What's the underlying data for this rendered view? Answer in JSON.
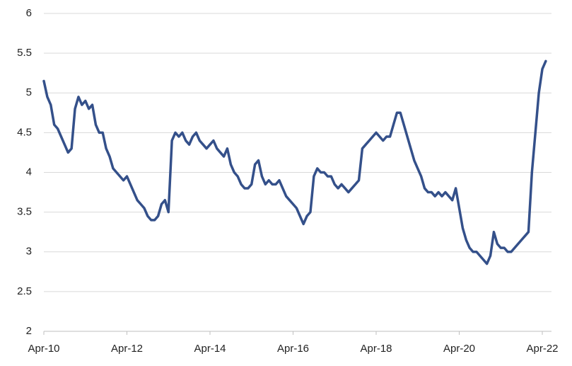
{
  "chart_data": {
    "type": "line",
    "categories": [
      "Apr-10",
      null,
      null,
      null,
      null,
      null,
      null,
      null,
      null,
      null,
      null,
      null,
      null,
      null,
      null,
      null,
      null,
      null,
      null,
      null,
      null,
      null,
      null,
      null,
      "Apr-12",
      null,
      null,
      null,
      null,
      null,
      null,
      null,
      null,
      null,
      null,
      null,
      null,
      null,
      null,
      null,
      null,
      null,
      null,
      null,
      null,
      null,
      null,
      null,
      "Apr-14",
      null,
      null,
      null,
      null,
      null,
      null,
      null,
      null,
      null,
      null,
      null,
      null,
      null,
      null,
      null,
      null,
      null,
      null,
      null,
      null,
      null,
      null,
      null,
      "Apr-16",
      null,
      null,
      null,
      null,
      null,
      null,
      null,
      null,
      null,
      null,
      null,
      null,
      null,
      null,
      null,
      null,
      null,
      null,
      null,
      null,
      null,
      null,
      null,
      "Apr-18",
      null,
      null,
      null,
      null,
      null,
      null,
      null,
      null,
      null,
      null,
      null,
      null,
      null,
      null,
      null,
      null,
      null,
      null,
      null,
      null,
      null,
      null,
      null,
      "Apr-20",
      null,
      null,
      null,
      null,
      null,
      null,
      null,
      null,
      null,
      null,
      null,
      null,
      null,
      null,
      null,
      null,
      null,
      null,
      null,
      null,
      null,
      null,
      null,
      "Apr-22",
      null
    ],
    "values": [
      5.15,
      4.95,
      4.85,
      4.6,
      4.55,
      4.45,
      4.35,
      4.25,
      4.3,
      4.8,
      4.95,
      4.85,
      4.9,
      4.8,
      4.85,
      4.6,
      4.5,
      4.5,
      4.3,
      4.2,
      4.05,
      4.0,
      3.95,
      3.9,
      3.95,
      3.85,
      3.75,
      3.65,
      3.6,
      3.55,
      3.45,
      3.4,
      3.4,
      3.45,
      3.6,
      3.65,
      3.5,
      4.4,
      4.5,
      4.45,
      4.5,
      4.4,
      4.35,
      4.45,
      4.5,
      4.4,
      4.35,
      4.3,
      4.35,
      4.4,
      4.3,
      4.25,
      4.2,
      4.3,
      4.1,
      4.0,
      3.95,
      3.85,
      3.8,
      3.8,
      3.85,
      4.1,
      4.15,
      3.95,
      3.85,
      3.9,
      3.85,
      3.85,
      3.9,
      3.8,
      3.7,
      3.65,
      3.6,
      3.55,
      3.45,
      3.35,
      3.45,
      3.5,
      3.95,
      4.05,
      4.0,
      4.0,
      3.95,
      3.95,
      3.85,
      3.8,
      3.85,
      3.8,
      3.75,
      3.8,
      3.85,
      3.9,
      4.3,
      4.35,
      4.4,
      4.45,
      4.5,
      4.45,
      4.4,
      4.45,
      4.45,
      4.6,
      4.75,
      4.75,
      4.6,
      4.45,
      4.3,
      4.15,
      4.05,
      3.95,
      3.8,
      3.75,
      3.75,
      3.7,
      3.75,
      3.7,
      3.75,
      3.7,
      3.65,
      3.8,
      3.55,
      3.3,
      3.15,
      3.05,
      3.0,
      3.0,
      2.95,
      2.9,
      2.85,
      2.95,
      3.25,
      3.1,
      3.05,
      3.05,
      3.0,
      3.0,
      3.05,
      3.1,
      3.15,
      3.2,
      3.25,
      4.0,
      4.5,
      5.0,
      5.3,
      5.4
    ],
    "color": "#34508a",
    "ylim": [
      2,
      6
    ],
    "yticks": [
      2,
      2.5,
      3,
      3.5,
      4,
      4.5,
      5,
      5.5,
      6
    ],
    "grid": true
  }
}
